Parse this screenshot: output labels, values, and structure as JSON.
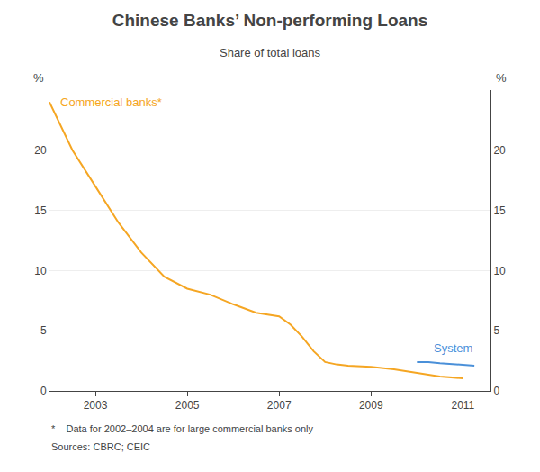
{
  "chart_data": {
    "type": "line",
    "title": "Chinese Banks’ Non-performing Loans",
    "subtitle": "Share of total loans",
    "ylabel": "%",
    "y2label": "%",
    "annotations": [
      "*    Data for 2002–2004 are for large commercial banks only",
      "Sources: CBRC; CEIC"
    ],
    "xlim": [
      2002.0,
      2011.6
    ],
    "xticks": [
      2003,
      2005,
      2007,
      2009,
      2011
    ],
    "ylim": [
      0,
      25
    ],
    "yticks": [
      0,
      5,
      10,
      15,
      20
    ],
    "y2lim": [
      0,
      25
    ],
    "y2ticks": [
      0,
      5,
      10,
      15,
      20
    ],
    "grid": true,
    "series": [
      {
        "name": "Commercial banks*",
        "color": "#F5A623",
        "x": [
          2002.0,
          2002.5,
          2003.0,
          2003.5,
          2004.0,
          2004.5,
          2005.0,
          2005.5,
          2006.0,
          2006.5,
          2007.0,
          2007.25,
          2007.5,
          2007.75,
          2008.0,
          2008.25,
          2008.5,
          2009.0,
          2009.5,
          2010.0,
          2010.5,
          2011.0
        ],
        "values": [
          24.0,
          20.0,
          17.0,
          14.0,
          11.5,
          9.5,
          8.5,
          8.0,
          7.2,
          6.5,
          6.2,
          5.5,
          4.5,
          3.3,
          2.4,
          2.2,
          2.1,
          2.0,
          1.8,
          1.5,
          1.2,
          1.05
        ]
      },
      {
        "name": "System",
        "color": "#4A90D9",
        "x": [
          2010.0,
          2010.25,
          2010.5,
          2010.75,
          2011.0,
          2011.25
        ],
        "values": [
          2.4,
          2.4,
          2.3,
          2.25,
          2.2,
          2.1
        ]
      }
    ]
  }
}
